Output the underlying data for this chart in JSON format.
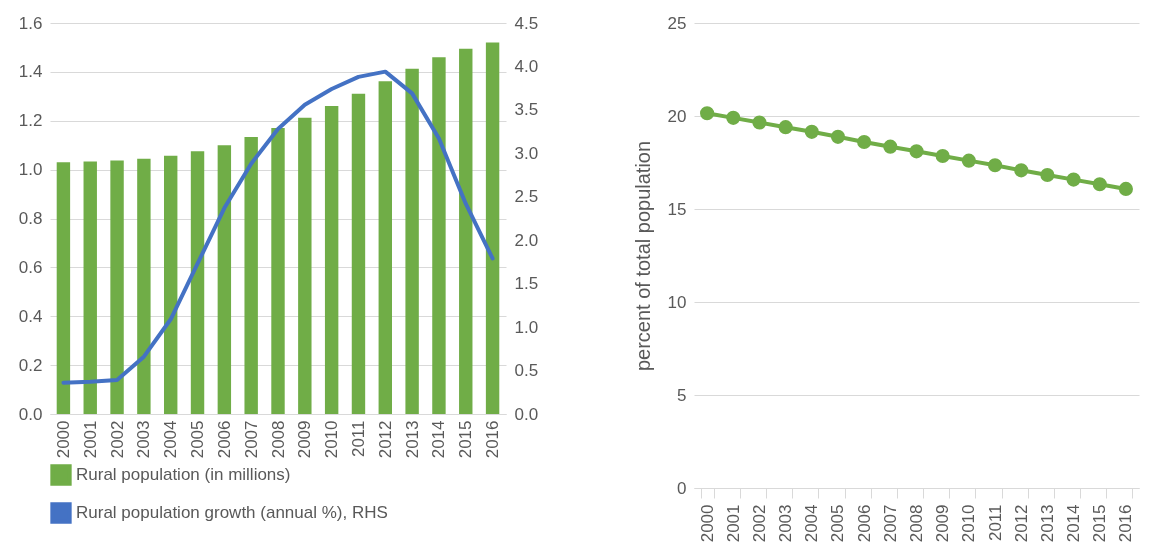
{
  "chart_data": [
    {
      "type": "bar",
      "categories": [
        "2000",
        "2001",
        "2002",
        "2003",
        "2004",
        "2005",
        "2006",
        "2007",
        "2008",
        "2009",
        "2010",
        "2011",
        "2012",
        "2013",
        "2014",
        "2015",
        "2016"
      ],
      "series": [
        {
          "name": "Rural population (in millions)",
          "type": "bar",
          "color": "#70ad47",
          "values": [
            1.03,
            1.033,
            1.037,
            1.044,
            1.057,
            1.075,
            1.1,
            1.133,
            1.17,
            1.212,
            1.26,
            1.31,
            1.362,
            1.413,
            1.46,
            1.495,
            1.52
          ]
        },
        {
          "name": "Rural population growth (annual %), RHS",
          "type": "line",
          "axis": "y2",
          "color": "#4472c4",
          "values": [
            0.36,
            0.37,
            0.39,
            0.66,
            1.09,
            1.73,
            2.37,
            2.88,
            3.28,
            3.56,
            3.74,
            3.88,
            3.94,
            3.69,
            3.17,
            2.42,
            1.79
          ]
        }
      ],
      "ylim": [
        0,
        1.6
      ],
      "yticks": [
        {
          "value": 0,
          "label": "0.0"
        },
        0.2,
        0.4,
        0.6,
        0.8,
        {
          "value": 1,
          "label": "1.0"
        },
        1.2,
        1.4,
        1.6
      ],
      "y2lim": [
        0,
        4.5
      ],
      "y2ticks": [
        {
          "value": 0,
          "label": "0.0"
        },
        0.5,
        {
          "value": 1,
          "label": "1.0"
        },
        1.5,
        {
          "value": 2,
          "label": "2.0"
        },
        2.5,
        {
          "value": 3,
          "label": "3.0"
        },
        3.5,
        {
          "value": 4,
          "label": "4.0"
        },
        4.5
      ],
      "grid": "y",
      "legend": "bottom"
    },
    {
      "type": "line",
      "categories": [
        "2000",
        "2001",
        "2002",
        "2003",
        "2004",
        "2005",
        "2006",
        "2007",
        "2008",
        "2009",
        "2010",
        "2011",
        "2012",
        "2013",
        "2014",
        "2015",
        "2016"
      ],
      "series": [
        {
          "color": "#70ad47",
          "values": [
            20.15,
            19.9,
            19.65,
            19.4,
            19.15,
            18.88,
            18.6,
            18.35,
            18.1,
            17.85,
            17.6,
            17.35,
            17.08,
            16.83,
            16.58,
            16.33,
            16.08
          ]
        }
      ],
      "ylabel": "percent of total population",
      "ylim": [
        0,
        25
      ],
      "yticks": [
        0,
        5,
        10,
        15,
        20,
        25
      ],
      "grid": "y",
      "marker": "circle"
    }
  ]
}
